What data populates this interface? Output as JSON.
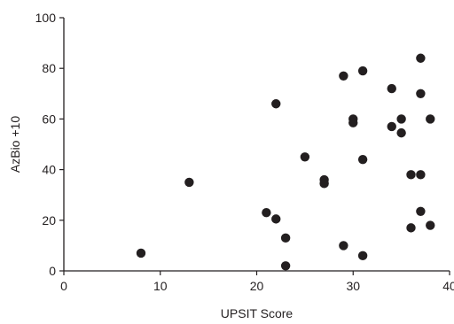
{
  "chart_data": {
    "type": "scatter",
    "title": "",
    "xlabel": "UPSIT Score",
    "ylabel": "AzBio +10",
    "xlim": [
      0,
      40
    ],
    "ylim": [
      0,
      100
    ],
    "x_ticks": [
      "0",
      "10",
      "20",
      "30",
      "40"
    ],
    "y_ticks": [
      "0",
      "20",
      "40",
      "60",
      "80",
      "100"
    ],
    "grid": false,
    "legend": "none",
    "marker_color": "#231f20",
    "points": [
      {
        "x": 8,
        "y": 7
      },
      {
        "x": 13,
        "y": 35
      },
      {
        "x": 21,
        "y": 23
      },
      {
        "x": 22,
        "y": 20.5
      },
      {
        "x": 22,
        "y": 66
      },
      {
        "x": 23,
        "y": 13
      },
      {
        "x": 23,
        "y": 2
      },
      {
        "x": 25,
        "y": 45
      },
      {
        "x": 27,
        "y": 36
      },
      {
        "x": 27,
        "y": 34.5
      },
      {
        "x": 29,
        "y": 77
      },
      {
        "x": 29,
        "y": 10
      },
      {
        "x": 30,
        "y": 60
      },
      {
        "x": 30,
        "y": 58.5
      },
      {
        "x": 31,
        "y": 79
      },
      {
        "x": 31,
        "y": 44
      },
      {
        "x": 31,
        "y": 6
      },
      {
        "x": 34,
        "y": 72
      },
      {
        "x": 34,
        "y": 57
      },
      {
        "x": 35,
        "y": 60
      },
      {
        "x": 35,
        "y": 54.5
      },
      {
        "x": 36,
        "y": 38
      },
      {
        "x": 36,
        "y": 17
      },
      {
        "x": 37,
        "y": 84
      },
      {
        "x": 37,
        "y": 70
      },
      {
        "x": 37,
        "y": 38
      },
      {
        "x": 37,
        "y": 23.5
      },
      {
        "x": 38,
        "y": 60
      },
      {
        "x": 38,
        "y": 18
      }
    ]
  }
}
